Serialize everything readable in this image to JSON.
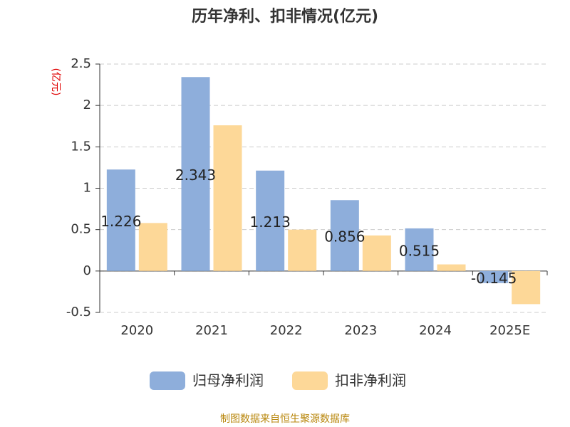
{
  "chart_data": {
    "type": "bar",
    "title": "历年净利、扣非情况(亿元)",
    "y_axis_label": "(亿元)",
    "categories": [
      "2020",
      "2021",
      "2022",
      "2023",
      "2024",
      "2025E"
    ],
    "series": [
      {
        "name": "归母净利润",
        "color": "#8eaedb",
        "values": [
          1.226,
          2.343,
          1.213,
          0.856,
          0.515,
          -0.145
        ],
        "show_labels": true
      },
      {
        "name": "扣非净利润",
        "color": "#fdd898",
        "values": [
          0.58,
          1.76,
          0.5,
          0.43,
          0.08,
          -0.4
        ],
        "show_labels": false
      }
    ],
    "ylim": [
      -0.5,
      2.5
    ],
    "yticks": [
      -0.5,
      0,
      0.5,
      1,
      1.5,
      2,
      2.5
    ],
    "grid": true,
    "source": "制图数据来自恒生聚源数据库"
  }
}
